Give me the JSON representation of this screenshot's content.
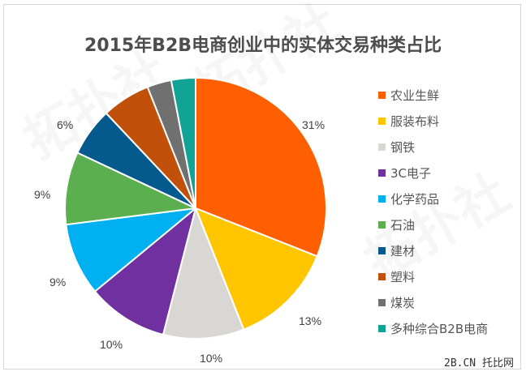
{
  "chart_data": {
    "type": "pie",
    "title": "2015年B2B电商创业中的实体交易种类占比",
    "start_angle_deg": -90,
    "direction": "clockwise",
    "legend_position": "right",
    "slices": [
      {
        "label": "农业生鲜",
        "value": 31,
        "display": "31%",
        "color": "#FF5F00"
      },
      {
        "label": "服装布料",
        "value": 13,
        "display": "13%",
        "color": "#FFC600"
      },
      {
        "label": "钢铁",
        "value": 10,
        "display": "10%",
        "color": "#D9D7D4"
      },
      {
        "label": "3C电子",
        "value": 10,
        "display": "10%",
        "color": "#7030A0"
      },
      {
        "label": "化学药品",
        "value": 9,
        "display": "9%",
        "color": "#00B0F0"
      },
      {
        "label": "石油",
        "value": 9,
        "display": "9%",
        "color": "#5BAF4E"
      },
      {
        "label": "建材",
        "value": 6,
        "display": "6%",
        "color": "#045A8D"
      },
      {
        "label": "塑料",
        "value": 6,
        "display": "",
        "color": "#C0500A"
      },
      {
        "label": "煤炭",
        "value": 3,
        "display": "",
        "color": "#707070"
      },
      {
        "label": "多种综合B2B电商",
        "value": 3,
        "display": "",
        "color": "#11A396"
      }
    ]
  },
  "title": "2015年B2B电商创业中的实体交易种类占比",
  "legend": [
    {
      "label": "农业生鲜",
      "color": "#FF5F00"
    },
    {
      "label": "服装布料",
      "color": "#FFC600"
    },
    {
      "label": "钢铁",
      "color": "#D9D7D4"
    },
    {
      "label": "3C电子",
      "color": "#7030A0"
    },
    {
      "label": "化学药品",
      "color": "#00B0F0"
    },
    {
      "label": "石油",
      "color": "#5BAF4E"
    },
    {
      "label": "建材",
      "color": "#045A8D"
    },
    {
      "label": "塑料",
      "color": "#C0500A"
    },
    {
      "label": "煤炭",
      "color": "#707070"
    },
    {
      "label": "多种综合B2B电商",
      "color": "#11A396"
    }
  ],
  "data_labels": [
    {
      "text": "31%"
    },
    {
      "text": "13%"
    },
    {
      "text": "10%"
    },
    {
      "text": "10%"
    },
    {
      "text": "9%"
    },
    {
      "text": "9%"
    },
    {
      "text": "6%"
    }
  ],
  "watermark": "拓扑社",
  "credit": "2B.CN 托比网"
}
